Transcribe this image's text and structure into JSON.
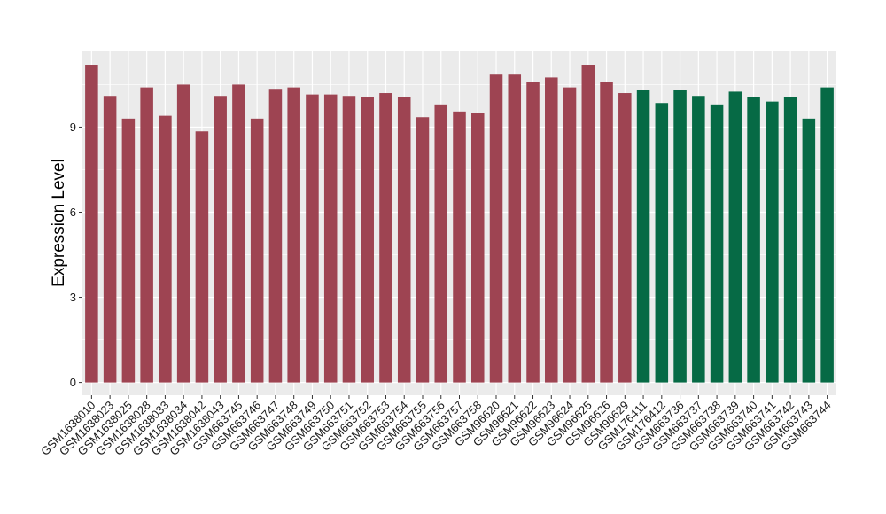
{
  "chart_data": {
    "type": "bar",
    "ylabel": "Expression Level",
    "xlabel": "",
    "ylim": [
      -0.45,
      11.7
    ],
    "yticks": [
      0,
      3,
      6,
      9
    ],
    "grid": true,
    "legend": "none",
    "colors": {
      "group1": "#9e4452",
      "group2": "#066a45",
      "panel": "#ebebeb",
      "grid": "#ffffff"
    },
    "categories": [
      "GSM1638010",
      "GSM1638023",
      "GSM1638025",
      "GSM1638028",
      "GSM1638033",
      "GSM1638034",
      "GSM1638042",
      "GSM1638043",
      "GSM663745",
      "GSM663746",
      "GSM663747",
      "GSM663748",
      "GSM663749",
      "GSM663750",
      "GSM663751",
      "GSM663752",
      "GSM663753",
      "GSM663754",
      "GSM663755",
      "GSM663756",
      "GSM663757",
      "GSM663758",
      "GSM96620",
      "GSM96621",
      "GSM96622",
      "GSM96623",
      "GSM96624",
      "GSM96625",
      "GSM96626",
      "GSM96629",
      "GSM176411",
      "GSM176412",
      "GSM663736",
      "GSM663737",
      "GSM663738",
      "GSM663739",
      "GSM663740",
      "GSM663741",
      "GSM663742",
      "GSM663743",
      "GSM663744"
    ],
    "values": [
      11.2,
      10.1,
      9.3,
      10.4,
      9.4,
      10.5,
      8.85,
      10.1,
      10.5,
      9.3,
      10.35,
      10.4,
      10.15,
      10.15,
      10.1,
      10.05,
      10.2,
      10.05,
      9.35,
      9.8,
      9.55,
      9.5,
      10.85,
      10.85,
      10.6,
      10.75,
      10.4,
      11.2,
      10.6,
      10.2,
      10.3,
      9.85,
      10.3,
      10.1,
      9.8,
      10.25,
      10.05,
      9.9,
      10.05,
      9.3,
      10.4
    ],
    "groups": [
      1,
      1,
      1,
      1,
      1,
      1,
      1,
      1,
      1,
      1,
      1,
      1,
      1,
      1,
      1,
      1,
      1,
      1,
      1,
      1,
      1,
      1,
      1,
      1,
      1,
      1,
      1,
      1,
      1,
      1,
      2,
      2,
      2,
      2,
      2,
      2,
      2,
      2,
      2,
      2,
      2
    ]
  }
}
